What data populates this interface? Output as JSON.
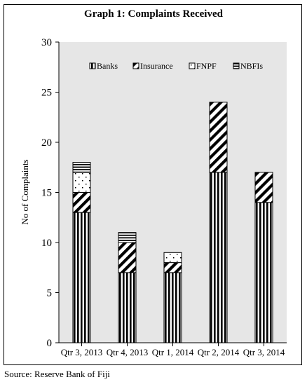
{
  "chart_data": {
    "type": "bar",
    "stacked": true,
    "title": "Graph 1: Complaints Received",
    "xlabel": "",
    "ylabel": "No of Complaints",
    "ylim": [
      0,
      30
    ],
    "yticks": [
      0,
      5,
      10,
      15,
      20,
      25,
      30
    ],
    "grid": false,
    "legend_position": "top",
    "plot_background": "#e6e6e6",
    "categories": [
      "Qtr 3, 2013",
      "Qtr 4, 2013",
      "Qtr 1, 2014",
      "Qtr 2, 2014",
      "Qtr 3, 2014"
    ],
    "series": [
      {
        "name": "Banks",
        "pattern": "vertical-stripes",
        "values": [
          13,
          7,
          7,
          17,
          14
        ]
      },
      {
        "name": "Insurance",
        "pattern": "diagonal-stripes",
        "values": [
          2,
          3,
          1,
          7,
          3
        ]
      },
      {
        "name": "FNPF",
        "pattern": "dots",
        "values": [
          2,
          0,
          1,
          0,
          0
        ]
      },
      {
        "name": "NBFIs",
        "pattern": "horizontal-stripes",
        "values": [
          1,
          1,
          0,
          0,
          0
        ]
      }
    ]
  },
  "source": "Source: Reserve Bank of Fiji"
}
